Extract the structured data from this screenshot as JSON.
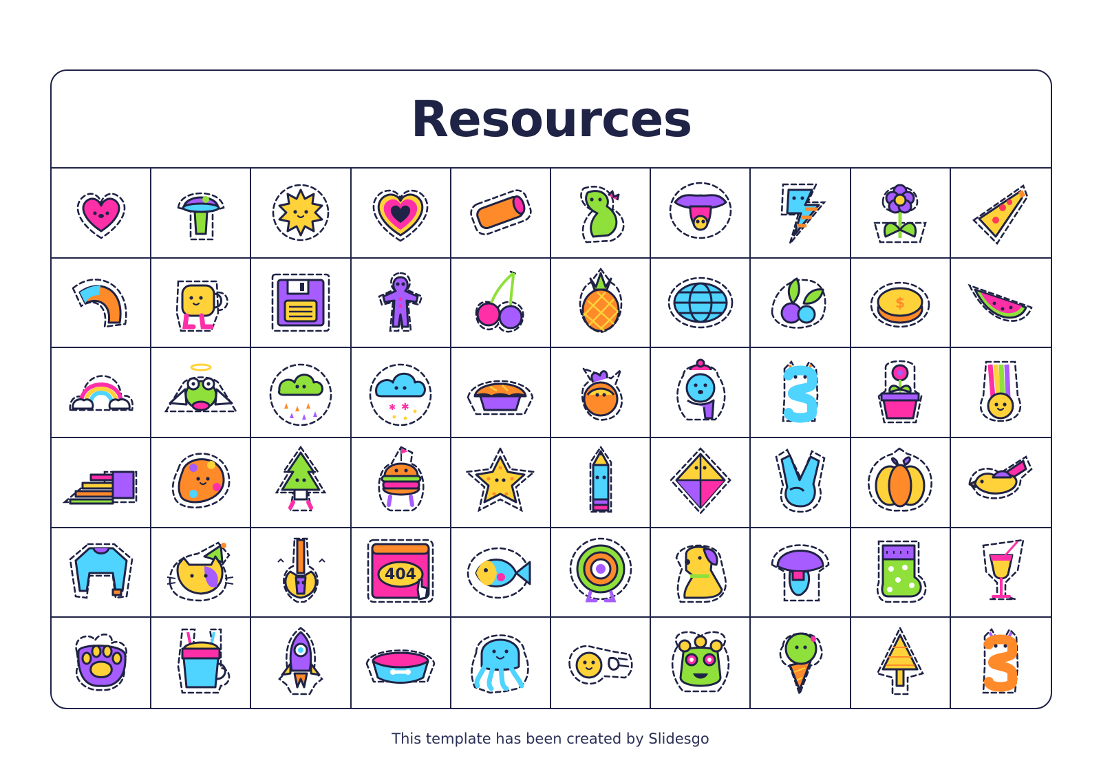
{
  "page": {
    "title": "Resources",
    "footer": "This template has been created by Slidesgo"
  },
  "colors": {
    "ink": "#1f2345",
    "pink": "#ff2fa8",
    "yellow": "#ffd23a",
    "orange": "#ff8a2a",
    "green": "#8fe03a",
    "purple": "#a65cff",
    "blue": "#4fd3ff",
    "red": "#ff3b57"
  },
  "stickers": [
    {
      "icon": "heart-face-icon"
    },
    {
      "icon": "mushroom-icon"
    },
    {
      "icon": "sun-face-icon"
    },
    {
      "icon": "layered-heart-icon"
    },
    {
      "icon": "tube-icon"
    },
    {
      "icon": "dinosaur-icon"
    },
    {
      "icon": "lips-tongue-icon"
    },
    {
      "icon": "lightning-bolt-icon"
    },
    {
      "icon": "flower-pot-icon"
    },
    {
      "icon": "pizza-slice-icon"
    },
    {
      "icon": "half-rainbow-icon"
    },
    {
      "icon": "mug-face-icon"
    },
    {
      "icon": "floppy-disk-icon"
    },
    {
      "icon": "gingerbread-man-icon"
    },
    {
      "icon": "cherries-icon"
    },
    {
      "icon": "pineapple-icon"
    },
    {
      "icon": "globe-icon"
    },
    {
      "icon": "berries-icon"
    },
    {
      "icon": "coin-icon"
    },
    {
      "icon": "watermelon-slice-icon"
    },
    {
      "icon": "rainbow-clouds-icon"
    },
    {
      "icon": "angel-frog-icon"
    },
    {
      "icon": "rain-cloud-icon"
    },
    {
      "icon": "snow-cloud-icon"
    },
    {
      "icon": "pie-icon"
    },
    {
      "icon": "orange-fruit-icon"
    },
    {
      "icon": "winter-bear-icon"
    },
    {
      "icon": "snake-icon"
    },
    {
      "icon": "potted-flower-icon"
    },
    {
      "icon": "rainbow-bunny-icon"
    },
    {
      "icon": "stairs-icon"
    },
    {
      "icon": "paint-palette-icon"
    },
    {
      "icon": "pine-tree-icon"
    },
    {
      "icon": "burger-icon"
    },
    {
      "icon": "starfish-icon"
    },
    {
      "icon": "pencil-icon"
    },
    {
      "icon": "kite-icon"
    },
    {
      "icon": "peace-hand-icon"
    },
    {
      "icon": "pumpkin-icon"
    },
    {
      "icon": "bird-icon"
    },
    {
      "icon": "sweater-icon"
    },
    {
      "icon": "party-cat-icon"
    },
    {
      "icon": "guitar-icon"
    },
    {
      "icon": "error-404-window-icon",
      "text": "404"
    },
    {
      "icon": "fish-icon"
    },
    {
      "icon": "target-icon"
    },
    {
      "icon": "dog-icon"
    },
    {
      "icon": "toadstool-icon"
    },
    {
      "icon": "sock-icon"
    },
    {
      "icon": "cocktail-icon"
    },
    {
      "icon": "paw-print-icon"
    },
    {
      "icon": "hot-drink-icon"
    },
    {
      "icon": "rocket-icon"
    },
    {
      "icon": "pet-bowl-icon"
    },
    {
      "icon": "octopus-icon"
    },
    {
      "icon": "ok-hand-emoji-icon"
    },
    {
      "icon": "flower-monster-icon"
    },
    {
      "icon": "ice-cream-icon"
    },
    {
      "icon": "yellow-tree-icon"
    },
    {
      "icon": "orange-snake-icon"
    }
  ]
}
